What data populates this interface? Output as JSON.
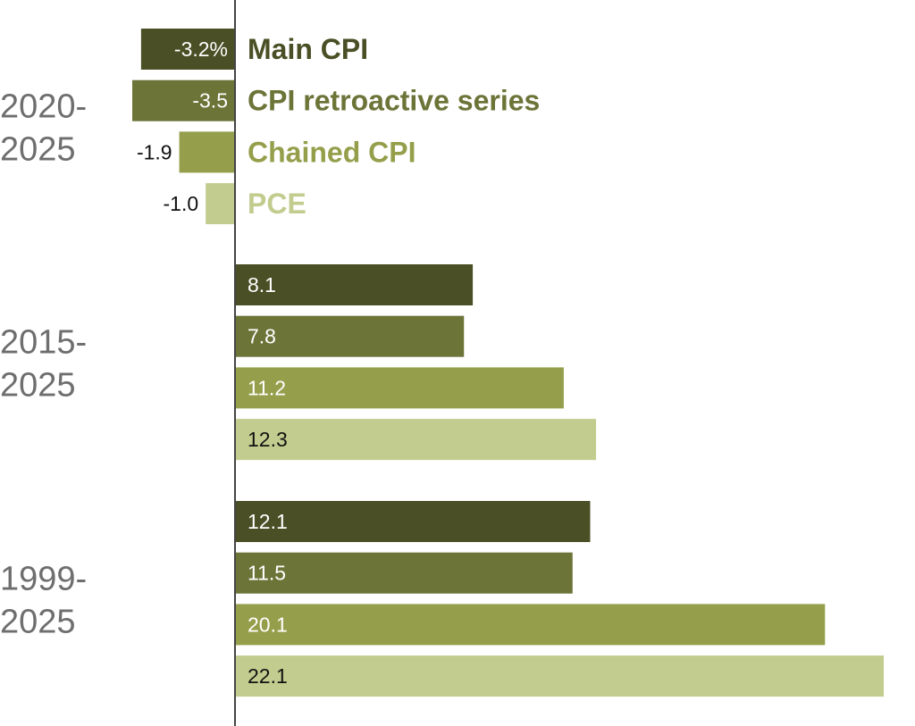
{
  "chart_data": {
    "type": "bar",
    "orientation": "horizontal",
    "categories": [
      {
        "label_lines": [
          "2020-",
          "2025"
        ]
      },
      {
        "label_lines": [
          "2015-",
          "2025"
        ]
      },
      {
        "label_lines": [
          "1999-",
          "2025"
        ]
      }
    ],
    "series": [
      {
        "name": "Main CPI",
        "color": "#4a4f25",
        "values": [
          -3.2,
          8.1,
          12.1
        ],
        "value_labels": [
          "-3.2%",
          "8.1",
          "12.1"
        ]
      },
      {
        "name": "CPI retroactive series",
        "color": "#6c7438",
        "values": [
          -3.5,
          7.8,
          11.5
        ],
        "value_labels": [
          "-3.5",
          "7.8",
          "11.5"
        ]
      },
      {
        "name": "Chained CPI",
        "color": "#959f4b",
        "values": [
          -1.9,
          11.2,
          20.1
        ],
        "value_labels": [
          "-1.9",
          "11.2",
          "20.1"
        ]
      },
      {
        "name": "PCE",
        "color": "#c2cc8e",
        "values": [
          -1.0,
          12.3,
          22.1
        ],
        "value_labels": [
          "-1.0",
          "12.3",
          "22.1"
        ]
      }
    ],
    "xlim": [
      -3.5,
      22.1
    ],
    "grid": false,
    "legend": "inline labels beside first group"
  }
}
